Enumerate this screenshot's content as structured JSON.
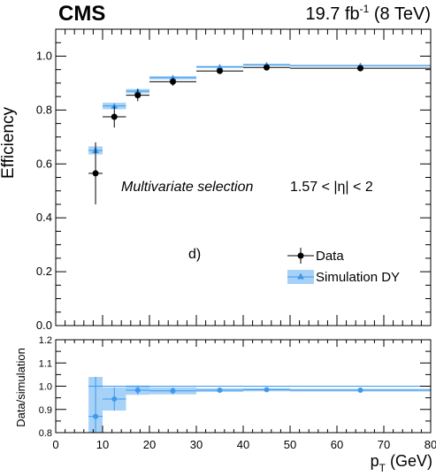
{
  "header": {
    "experiment": "CMS",
    "lumi": "19.7 fb",
    "lumi_exp": "-1",
    "energy": "(8 TeV)"
  },
  "chart_data": [
    {
      "type": "scatter",
      "panel": "top",
      "ylabel": "Efficiency",
      "xlim": [
        0,
        80
      ],
      "ylim": [
        0,
        1.1
      ],
      "yticks": [
        "0.0",
        "0.2",
        "0.4",
        "0.6",
        "0.8",
        "1.0"
      ],
      "selection_text": "Multivariate selection",
      "eta_text": "1.57 < |η| < 2",
      "panel_label": "d)",
      "legend": {
        "placement": "bottom-right",
        "entries": [
          "Data",
          "Simulation DY"
        ]
      },
      "series": [
        {
          "name": "Data",
          "x_low": [
            7,
            10,
            15,
            20,
            30,
            40,
            50
          ],
          "x_high": [
            10,
            15,
            20,
            30,
            40,
            50,
            80
          ],
          "x": [
            8.5,
            12.5,
            17.5,
            25,
            35,
            45,
            65
          ],
          "y": [
            0.565,
            0.775,
            0.855,
            0.905,
            0.945,
            0.958,
            0.955
          ],
          "yerr": [
            0.115,
            0.04,
            0.022,
            0.015,
            0.008,
            0.007,
            0.006
          ]
        },
        {
          "name": "Simulation DY",
          "x_low": [
            7,
            10,
            15,
            20,
            30,
            40,
            50
          ],
          "x_high": [
            10,
            15,
            20,
            30,
            40,
            50,
            80
          ],
          "x": [
            8.5,
            12.5,
            17.5,
            25,
            35,
            45,
            65
          ],
          "y": [
            0.65,
            0.815,
            0.87,
            0.92,
            0.96,
            0.968,
            0.965
          ],
          "yerr": [
            0.015,
            0.012,
            0.008,
            0.006,
            0.004,
            0.004,
            0.003
          ]
        }
      ]
    },
    {
      "type": "scatter",
      "panel": "ratio",
      "ylabel": "Data/simulation",
      "xlabel": "p",
      "xlabel_sub": "T",
      "xlabel_unit": "(GeV)",
      "xlim": [
        0,
        80
      ],
      "ylim": [
        0.8,
        1.2
      ],
      "xticks": [
        "0",
        "10",
        "20",
        "30",
        "40",
        "50",
        "60",
        "70",
        "80"
      ],
      "yticks": [
        "0.8",
        "0.9",
        "1.0",
        "1.1",
        "1.2"
      ],
      "series": [
        {
          "name": "Data/simulation",
          "x_low": [
            7,
            10,
            15,
            20,
            30,
            40,
            50
          ],
          "x_high": [
            10,
            15,
            20,
            30,
            40,
            50,
            80
          ],
          "x": [
            8.5,
            12.5,
            17.5,
            25,
            35,
            45,
            65
          ],
          "y": [
            0.87,
            0.945,
            0.983,
            0.98,
            0.983,
            0.985,
            0.983
          ],
          "yerr": [
            0.17,
            0.05,
            0.02,
            0.015,
            0.008,
            0.007,
            0.006
          ]
        }
      ]
    }
  ]
}
